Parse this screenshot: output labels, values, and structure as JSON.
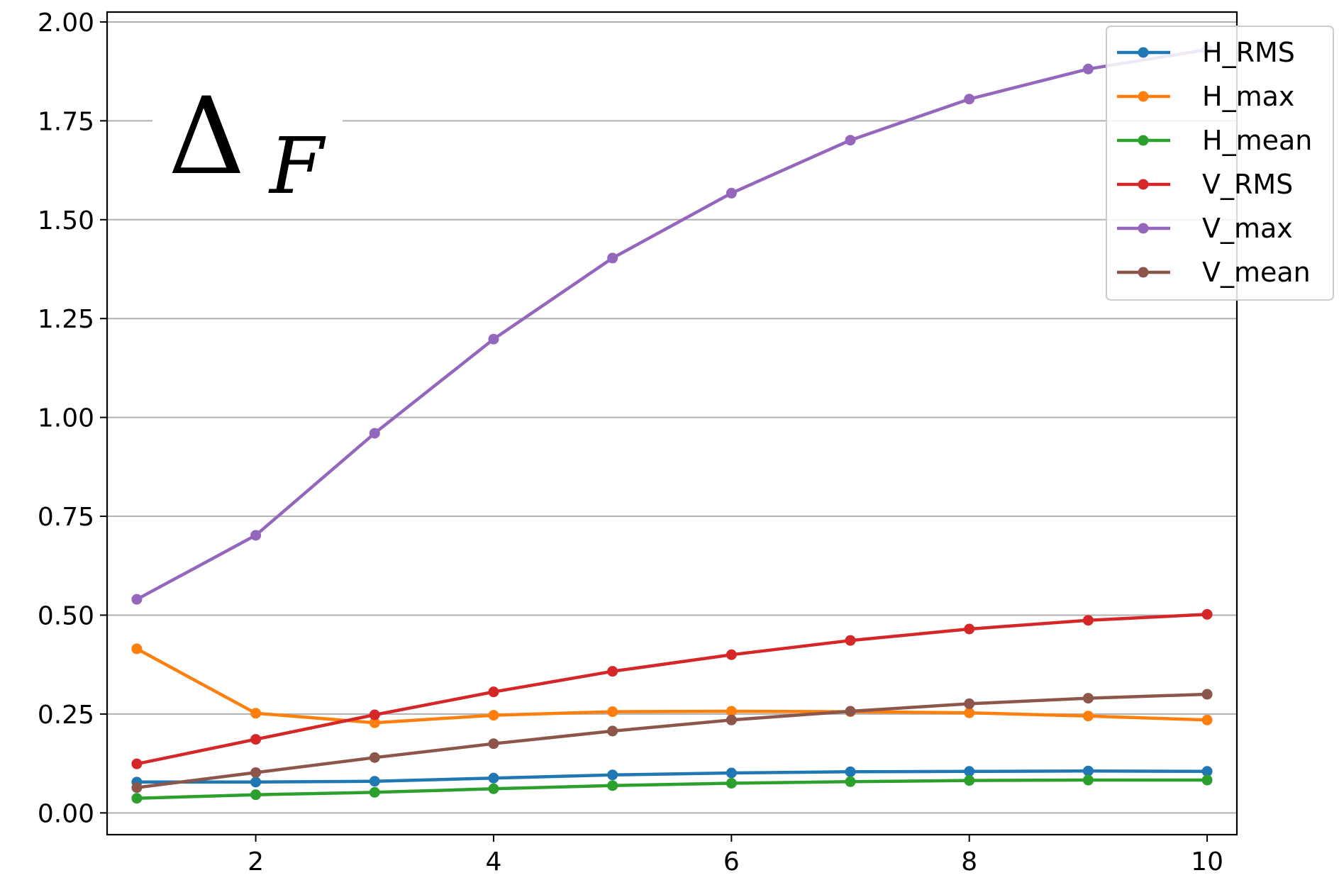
{
  "chart_data": {
    "type": "line",
    "title": "",
    "xlabel": "",
    "ylabel": "",
    "annotation": {
      "symbol": "Δ",
      "subscript": "F"
    },
    "x": [
      1,
      2,
      3,
      4,
      5,
      6,
      7,
      8,
      9,
      10
    ],
    "xlim": [
      0.75,
      10.25
    ],
    "ylim": [
      -0.055,
      2.025
    ],
    "xticks": [
      2,
      4,
      6,
      8,
      10
    ],
    "xtick_labels": [
      "2",
      "4",
      "6",
      "8",
      "10"
    ],
    "yticks": [
      0.0,
      0.25,
      0.5,
      0.75,
      1.0,
      1.25,
      1.5,
      1.75,
      2.0
    ],
    "ytick_labels": [
      "0.00",
      "0.25",
      "0.50",
      "0.75",
      "1.00",
      "1.25",
      "1.50",
      "1.75",
      "2.00"
    ],
    "grid": "horizontal",
    "legend_position": "top-right",
    "series": [
      {
        "name": "H_RMS",
        "color": "#1f77b4",
        "values": [
          0.078,
          0.078,
          0.08,
          0.088,
          0.096,
          0.101,
          0.104,
          0.105,
          0.106,
          0.105
        ]
      },
      {
        "name": "H_max",
        "color": "#ff7f0e",
        "values": [
          0.415,
          0.252,
          0.228,
          0.247,
          0.256,
          0.257,
          0.256,
          0.253,
          0.245,
          0.235
        ]
      },
      {
        "name": "H_mean",
        "color": "#2ca02c",
        "values": [
          0.037,
          0.046,
          0.052,
          0.061,
          0.069,
          0.075,
          0.079,
          0.082,
          0.083,
          0.083
        ]
      },
      {
        "name": "V_RMS",
        "color": "#d62728",
        "values": [
          0.124,
          0.186,
          0.248,
          0.306,
          0.358,
          0.4,
          0.436,
          0.465,
          0.487,
          0.502
        ]
      },
      {
        "name": "V_max",
        "color": "#9467bd",
        "values": [
          0.54,
          0.702,
          0.96,
          1.198,
          1.403,
          1.567,
          1.701,
          1.805,
          1.881,
          1.93
        ]
      },
      {
        "name": "V_mean",
        "color": "#8c564b",
        "values": [
          0.064,
          0.102,
          0.14,
          0.175,
          0.207,
          0.235,
          0.257,
          0.276,
          0.29,
          0.3
        ]
      }
    ]
  }
}
